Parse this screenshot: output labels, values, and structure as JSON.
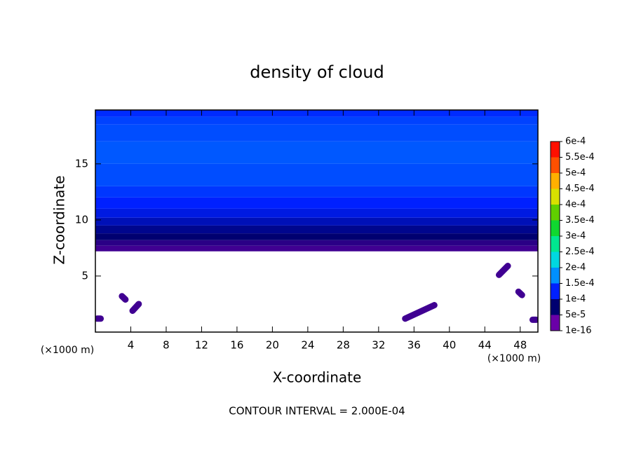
{
  "chart_data": {
    "type": "contour",
    "title": "density of cloud",
    "xlabel": "X-coordinate",
    "ylabel": "Z-coordinate",
    "x_unit": "(×1000 m)",
    "footer": "CONTOUR INTERVAL = 2.000E-04",
    "xlim": [
      0,
      50
    ],
    "xticks": [
      4,
      8,
      12,
      16,
      20,
      24,
      28,
      32,
      36,
      40,
      44,
      48
    ],
    "ylim": [
      0,
      19.8
    ],
    "yticks": [
      5,
      10,
      15
    ],
    "colorbar": {
      "ticks": [
        {
          "value": 1e-16,
          "label": "1e-16"
        },
        {
          "value": 5e-05,
          "label": "5e-5"
        },
        {
          "value": 0.0001,
          "label": "1e-4"
        },
        {
          "value": 0.00015,
          "label": "1.5e-4"
        },
        {
          "value": 0.0002,
          "label": "2e-4"
        },
        {
          "value": 0.00025,
          "label": "2.5e-4"
        },
        {
          "value": 0.0003,
          "label": "3e-4"
        },
        {
          "value": 0.00035,
          "label": "3.5e-4"
        },
        {
          "value": 0.0004,
          "label": "4e-4"
        },
        {
          "value": 0.00045,
          "label": "4.5e-4"
        },
        {
          "value": 0.0005,
          "label": "5e-4"
        },
        {
          "value": 0.00055,
          "label": "5.5e-4"
        },
        {
          "value": 0.0006,
          "label": "6e-4"
        }
      ],
      "colors": [
        "#6a00a8",
        "#000070",
        "#0020ff",
        "#0090ff",
        "#00d8e0",
        "#00e890",
        "#10d830",
        "#60d000",
        "#d8e000",
        "#ffb000",
        "#ff5000",
        "#ff1000",
        "#f08080"
      ]
    },
    "field": {
      "z": [
        7.2,
        7.7,
        8.2,
        8.8,
        9.5,
        10.2,
        11,
        12,
        13,
        15,
        17,
        18.5,
        19.2,
        19.8
      ],
      "values": [
        2e-05,
        3e-05,
        5e-05,
        6e-05,
        7.5e-05,
        9e-05,
        0.0001,
        0.00011,
        0.00012,
        0.000125,
        0.00012,
        0.000115,
        0.000105,
        null
      ]
    },
    "patches": [
      {
        "x": [
          35,
          38.3
        ],
        "z": [
          1.2,
          2.4
        ],
        "value": 2e-05
      },
      {
        "x": [
          45.6,
          46.6
        ],
        "z": [
          5.1,
          5.9
        ],
        "value": 2e-05
      },
      {
        "x": [
          4.2,
          4.9
        ],
        "z": [
          1.9,
          2.5
        ],
        "value": 2e-05
      },
      {
        "x": [
          3,
          3.4
        ],
        "z": [
          3.2,
          2.9
        ],
        "value": 2e-05
      },
      {
        "x": [
          0.2,
          0.6
        ],
        "z": [
          1.2,
          1.2
        ],
        "value": 2e-05
      },
      {
        "x": [
          49.4,
          49.8
        ],
        "z": [
          1.1,
          1.1
        ],
        "value": 2e-05
      },
      {
        "x": [
          47.8,
          48.2
        ],
        "z": [
          3.6,
          3.3
        ],
        "value": 2e-05
      }
    ]
  }
}
